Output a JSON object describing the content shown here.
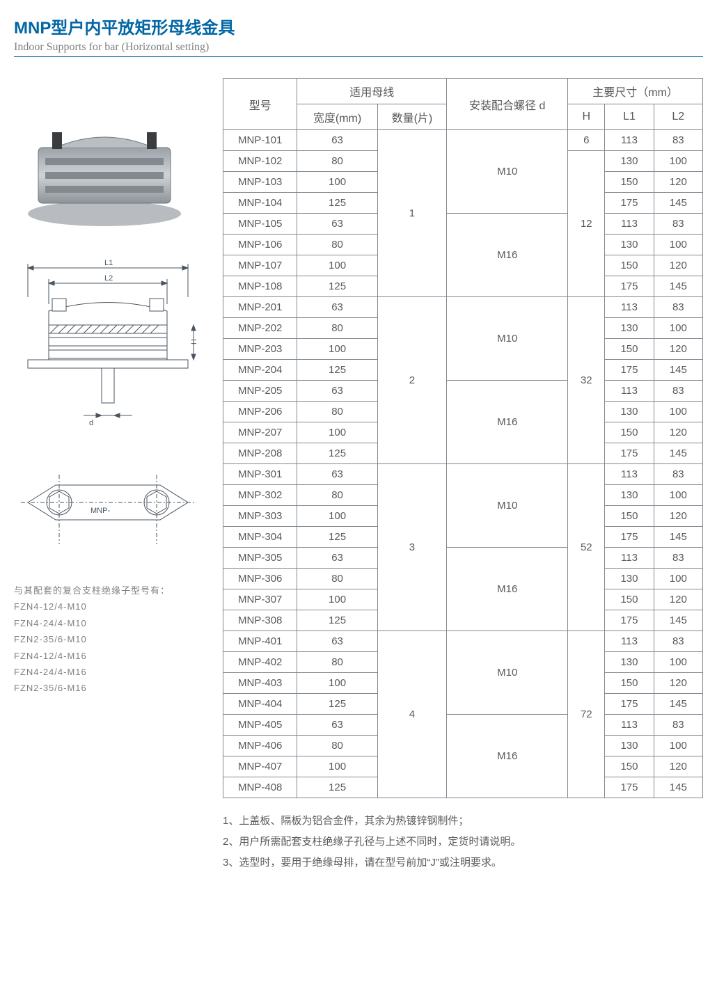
{
  "header": {
    "title_cn": "MNP型户内平放矩形母线金具",
    "title_en": "Indoor Supports for bar (Horizontal setting)"
  },
  "diagram_labels": {
    "L1": "L1",
    "L2": "L2",
    "H": "H",
    "d": "d",
    "MNP": "MNP-"
  },
  "insulator_note": {
    "intro": "与其配套的复合支柱绝缘子型号有：",
    "models": [
      "FZN4-12/4-M10",
      "FZN4-24/4-M10",
      "FZN2-35/6-M10",
      "FZN4-12/4-M16",
      "FZN4-24/4-M16",
      "FZN2-35/6-M16"
    ]
  },
  "table": {
    "headers": {
      "model": "型号",
      "busbar": "适用母线",
      "width": "宽度(mm)",
      "qty": "数量(片)",
      "bolt": "安装配合螺径 d",
      "dims": "主要尺寸（mm）",
      "H": "H",
      "L1": "L1",
      "L2": "L2"
    },
    "groups": [
      {
        "qty": "1",
        "H_first": "6",
        "H_rest": "12",
        "subgroups": [
          {
            "bolt": "M10",
            "rows": [
              {
                "model": "MNP-101",
                "width": "63",
                "L1": "113",
                "L2": "83"
              },
              {
                "model": "MNP-102",
                "width": "80",
                "L1": "130",
                "L2": "100"
              },
              {
                "model": "MNP-103",
                "width": "100",
                "L1": "150",
                "L2": "120"
              },
              {
                "model": "MNP-104",
                "width": "125",
                "L1": "175",
                "L2": "145"
              }
            ]
          },
          {
            "bolt": "M16",
            "rows": [
              {
                "model": "MNP-105",
                "width": "63",
                "L1": "113",
                "L2": "83"
              },
              {
                "model": "MNP-106",
                "width": "80",
                "L1": "130",
                "L2": "100"
              },
              {
                "model": "MNP-107",
                "width": "100",
                "L1": "150",
                "L2": "120"
              },
              {
                "model": "MNP-108",
                "width": "125",
                "L1": "175",
                "L2": "145"
              }
            ]
          }
        ]
      },
      {
        "qty": "2",
        "H": "32",
        "subgroups": [
          {
            "bolt": "M10",
            "rows": [
              {
                "model": "MNP-201",
                "width": "63",
                "L1": "113",
                "L2": "83"
              },
              {
                "model": "MNP-202",
                "width": "80",
                "L1": "130",
                "L2": "100"
              },
              {
                "model": "MNP-203",
                "width": "100",
                "L1": "150",
                "L2": "120"
              },
              {
                "model": "MNP-204",
                "width": "125",
                "L1": "175",
                "L2": "145"
              }
            ]
          },
          {
            "bolt": "M16",
            "rows": [
              {
                "model": "MNP-205",
                "width": "63",
                "L1": "113",
                "L2": "83"
              },
              {
                "model": "MNP-206",
                "width": "80",
                "L1": "130",
                "L2": "100"
              },
              {
                "model": "MNP-207",
                "width": "100",
                "L1": "150",
                "L2": "120"
              },
              {
                "model": "MNP-208",
                "width": "125",
                "L1": "175",
                "L2": "145"
              }
            ]
          }
        ]
      },
      {
        "qty": "3",
        "H": "52",
        "subgroups": [
          {
            "bolt": "M10",
            "rows": [
              {
                "model": "MNP-301",
                "width": "63",
                "L1": "113",
                "L2": "83"
              },
              {
                "model": "MNP-302",
                "width": "80",
                "L1": "130",
                "L2": "100"
              },
              {
                "model": "MNP-303",
                "width": "100",
                "L1": "150",
                "L2": "120"
              },
              {
                "model": "MNP-304",
                "width": "125",
                "L1": "175",
                "L2": "145"
              }
            ]
          },
          {
            "bolt": "M16",
            "rows": [
              {
                "model": "MNP-305",
                "width": "63",
                "L1": "113",
                "L2": "83"
              },
              {
                "model": "MNP-306",
                "width": "80",
                "L1": "130",
                "L2": "100"
              },
              {
                "model": "MNP-307",
                "width": "100",
                "L1": "150",
                "L2": "120"
              },
              {
                "model": "MNP-308",
                "width": "125",
                "L1": "175",
                "L2": "145"
              }
            ]
          }
        ]
      },
      {
        "qty": "4",
        "H": "72",
        "subgroups": [
          {
            "bolt": "M10",
            "rows": [
              {
                "model": "MNP-401",
                "width": "63",
                "L1": "113",
                "L2": "83"
              },
              {
                "model": "MNP-402",
                "width": "80",
                "L1": "130",
                "L2": "100"
              },
              {
                "model": "MNP-403",
                "width": "100",
                "L1": "150",
                "L2": "120"
              },
              {
                "model": "MNP-404",
                "width": "125",
                "L1": "175",
                "L2": "145"
              }
            ]
          },
          {
            "bolt": "M16",
            "rows": [
              {
                "model": "MNP-405",
                "width": "63",
                "L1": "113",
                "L2": "83"
              },
              {
                "model": "MNP-406",
                "width": "80",
                "L1": "130",
                "L2": "100"
              },
              {
                "model": "MNP-407",
                "width": "100",
                "L1": "150",
                "L2": "120"
              },
              {
                "model": "MNP-408",
                "width": "125",
                "L1": "175",
                "L2": "145"
              }
            ]
          }
        ]
      }
    ]
  },
  "notes": [
    "1、上盖板、隔板为铝合金件，其余为热镀锌钢制件；",
    "2、用户所需配套支柱绝缘子孔径与上述不同时，定货时请说明。",
    "3、选型时，要用于绝缘母排，请在型号前加“J”或注明要求。"
  ],
  "styling": {
    "title_color": "#0066a4",
    "subtitle_color": "#808080",
    "text_color": "#595959",
    "border_color": "#808890",
    "background": "#ffffff",
    "table_font_size_pt": 11,
    "title_font_size_pt": 18
  }
}
